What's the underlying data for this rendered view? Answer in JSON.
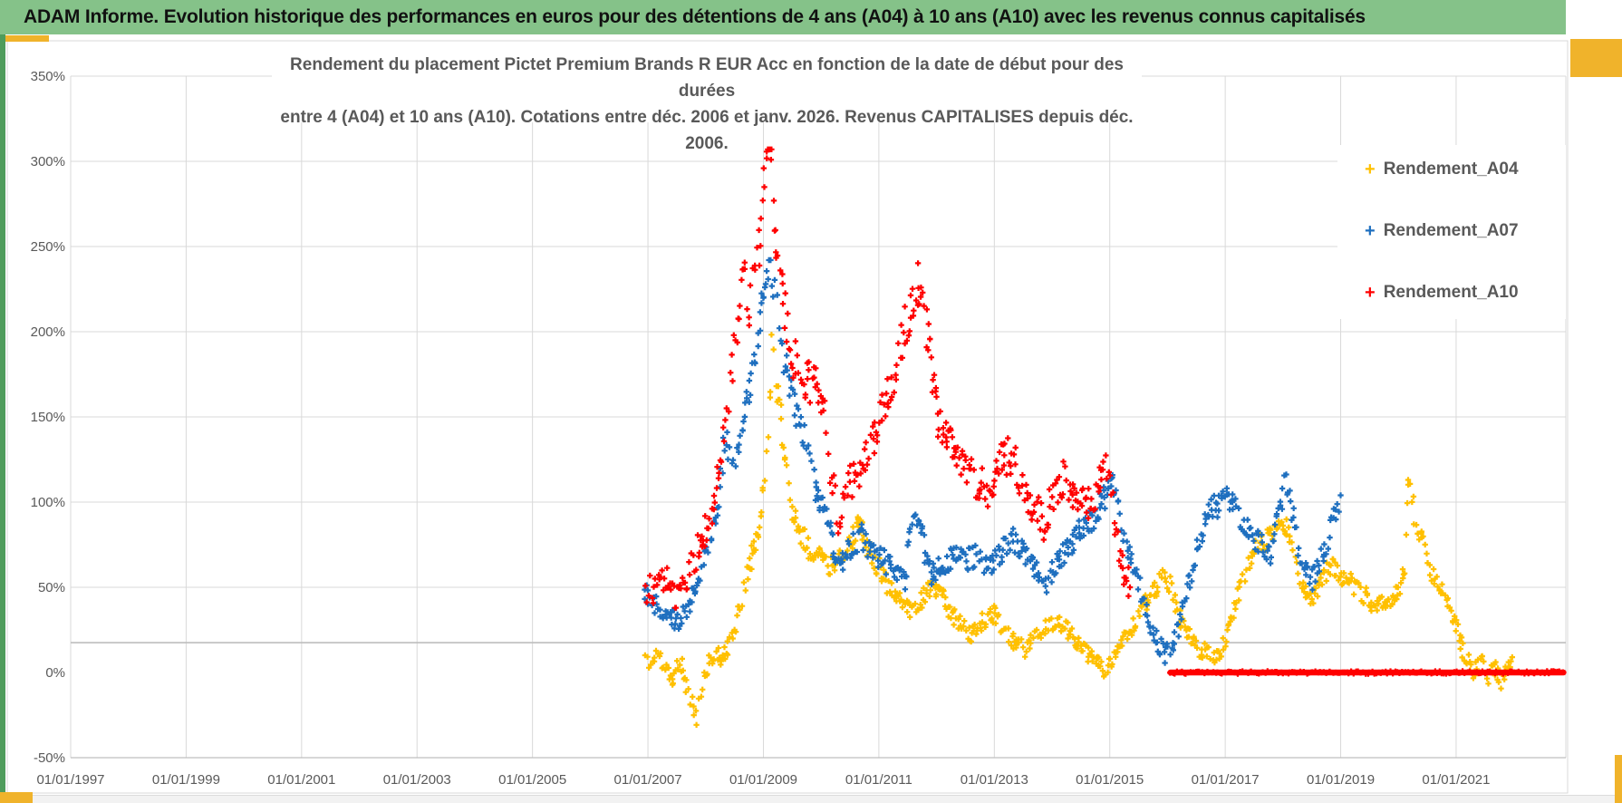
{
  "header": {
    "title": "ADAM Informe. Evolution historique des performances en euros pour des détentions de 4 ans (A04) à 10 ans (A10) avec les revenus connus capitalisés"
  },
  "colors": {
    "header_green": "#85C289",
    "accent_dark_green": "#4F9C5C",
    "accent_gold": "#F0B32B",
    "grid": "#D9D9D9",
    "grid_extra": "#BDBDBD",
    "axis_text": "#595959",
    "plot_border": "#BFBFBF",
    "series_a04": "#FFC000",
    "series_a07": "#1E6FBF",
    "series_a10": "#FF0000"
  },
  "chart_data": {
    "type": "scatter",
    "title_line1": "Rendement du placement Pictet Premium Brands R EUR Acc en fonction de la date de début pour des durées",
    "title_line2": "entre 4 (A04) et 10 ans (A10). Cotations entre déc. 2006 et janv. 2026. Revenus CAPITALISES depuis déc. 2006.",
    "marker_glyph": "+",
    "legend_position": "right-top",
    "grid": "on",
    "xlabel": "",
    "ylabel": "",
    "x_axis": {
      "min_year": 1997,
      "max_year": 2022.9,
      "ticks": [
        {
          "year": 1997,
          "label": "01/01/1997"
        },
        {
          "year": 1999,
          "label": "01/01/1999"
        },
        {
          "year": 2001,
          "label": "01/01/2001"
        },
        {
          "year": 2003,
          "label": "01/01/2003"
        },
        {
          "year": 2005,
          "label": "01/01/2005"
        },
        {
          "year": 2007,
          "label": "01/01/2007"
        },
        {
          "year": 2009,
          "label": "01/01/2009"
        },
        {
          "year": 2011,
          "label": "01/01/2011"
        },
        {
          "year": 2013,
          "label": "01/01/2013"
        },
        {
          "year": 2015,
          "label": "01/01/2015"
        },
        {
          "year": 2017,
          "label": "01/01/2017"
        },
        {
          "year": 2019,
          "label": "01/01/2019"
        },
        {
          "year": 2021,
          "label": "01/01/2021"
        }
      ]
    },
    "y_axis": {
      "min_pct": -50,
      "max_pct": 350,
      "ticks": [
        {
          "value": 350,
          "label": "350%",
          "grid": true
        },
        {
          "value": 300,
          "label": "300%",
          "grid": true
        },
        {
          "value": 250,
          "label": "250%",
          "grid": true
        },
        {
          "value": 200,
          "label": "200%",
          "grid": true
        },
        {
          "value": 150,
          "label": "150%",
          "grid": true
        },
        {
          "value": 100,
          "label": "100%",
          "grid": true
        },
        {
          "value": 50,
          "label": "50%",
          "grid": true
        },
        {
          "value": 0,
          "label": "0%",
          "grid": false
        },
        {
          "value": -50,
          "label": "-50%",
          "grid": false
        }
      ],
      "extra_gridline_pct": 17.5
    },
    "series": [
      {
        "name": "Rendement_A04",
        "color_key": "series_a04",
        "seed": 11,
        "jitter": {
          "base": 4.5,
          "div": 200,
          "min": -33,
          "max": 204
        },
        "anchors": [
          [
            2006.95,
            10
          ],
          [
            2007.05,
            5
          ],
          [
            2007.15,
            12
          ],
          [
            2007.3,
            3
          ],
          [
            2007.45,
            -5
          ],
          [
            2007.55,
            8
          ],
          [
            2007.7,
            -12
          ],
          [
            2007.85,
            -27
          ],
          [
            2007.95,
            -6
          ],
          [
            2008.05,
            6
          ],
          [
            2008.15,
            12
          ],
          [
            2008.3,
            8
          ],
          [
            2008.45,
            20
          ],
          [
            2008.6,
            40
          ],
          [
            2008.75,
            62
          ],
          [
            2008.9,
            80
          ],
          [
            2009.0,
            105
          ],
          [
            2009.08,
            140
          ],
          [
            2009.15,
            195
          ],
          [
            2009.22,
            170
          ],
          [
            2009.3,
            150
          ],
          [
            2009.4,
            118
          ],
          [
            2009.5,
            95
          ],
          [
            2009.65,
            82
          ],
          [
            2009.8,
            73
          ],
          [
            2010.0,
            70
          ],
          [
            2010.15,
            62
          ],
          [
            2010.3,
            68
          ],
          [
            2010.5,
            76
          ],
          [
            2010.65,
            88
          ],
          [
            2010.8,
            74
          ],
          [
            2011.0,
            62
          ],
          [
            2011.2,
            48
          ],
          [
            2011.4,
            42
          ],
          [
            2011.6,
            36
          ],
          [
            2011.8,
            46
          ],
          [
            2012.0,
            50
          ],
          [
            2012.2,
            38
          ],
          [
            2012.4,
            28
          ],
          [
            2012.6,
            22
          ],
          [
            2012.8,
            30
          ],
          [
            2013.0,
            35
          ],
          [
            2013.2,
            24
          ],
          [
            2013.4,
            16
          ],
          [
            2013.55,
            13
          ],
          [
            2013.7,
            20
          ],
          [
            2013.9,
            26
          ],
          [
            2014.1,
            30
          ],
          [
            2014.3,
            24
          ],
          [
            2014.5,
            15
          ],
          [
            2014.7,
            8
          ],
          [
            2014.9,
            2
          ],
          [
            2015.05,
            8
          ],
          [
            2015.2,
            18
          ],
          [
            2015.4,
            28
          ],
          [
            2015.6,
            40
          ],
          [
            2015.8,
            50
          ],
          [
            2015.98,
            58
          ],
          [
            2016.15,
            38
          ],
          [
            2016.35,
            22
          ],
          [
            2016.55,
            14
          ],
          [
            2016.75,
            10
          ],
          [
            2016.88,
            8
          ],
          [
            2017.05,
            25
          ],
          [
            2017.25,
            48
          ],
          [
            2017.45,
            68
          ],
          [
            2017.65,
            76
          ],
          [
            2017.85,
            82
          ],
          [
            2018.0,
            90
          ],
          [
            2018.15,
            74
          ],
          [
            2018.3,
            55
          ],
          [
            2018.45,
            43
          ],
          [
            2018.6,
            50
          ],
          [
            2018.8,
            63
          ],
          [
            2019.0,
            58
          ],
          [
            2019.2,
            52
          ],
          [
            2019.4,
            46
          ],
          [
            2019.6,
            38
          ],
          [
            2019.8,
            42
          ],
          [
            2020.0,
            46
          ],
          [
            2020.1,
            62
          ],
          [
            2020.18,
            112
          ],
          [
            2020.28,
            92
          ],
          [
            2020.45,
            72
          ],
          [
            2020.6,
            56
          ],
          [
            2020.8,
            44
          ],
          [
            2021.0,
            28
          ],
          [
            2021.15,
            10
          ],
          [
            2021.3,
            0
          ],
          [
            2021.45,
            8
          ],
          [
            2021.55,
            -2
          ],
          [
            2021.65,
            5
          ],
          [
            2021.78,
            -8
          ],
          [
            2021.88,
            3
          ],
          [
            2021.97,
            9
          ]
        ]
      },
      {
        "name": "Rendement_A07",
        "color_key": "series_a07",
        "seed": 22,
        "jitter": {
          "base": 5.5,
          "div": 240,
          "min": 2,
          "max": 242
        },
        "anchors": [
          [
            2006.95,
            47
          ],
          [
            2007.1,
            42
          ],
          [
            2007.3,
            37
          ],
          [
            2007.55,
            29
          ],
          [
            2007.7,
            40
          ],
          [
            2007.9,
            55
          ],
          [
            2008.05,
            76
          ],
          [
            2008.2,
            96
          ],
          [
            2008.35,
            140
          ],
          [
            2008.45,
            118
          ],
          [
            2008.6,
            135
          ],
          [
            2008.75,
            165
          ],
          [
            2008.9,
            196
          ],
          [
            2009.0,
            226
          ],
          [
            2009.1,
            240
          ],
          [
            2009.2,
            224
          ],
          [
            2009.3,
            196
          ],
          [
            2009.45,
            166
          ],
          [
            2009.6,
            150
          ],
          [
            2009.75,
            134
          ],
          [
            2009.9,
            106
          ],
          [
            2010.1,
            90
          ],
          [
            2010.3,
            62
          ],
          [
            2010.5,
            72
          ],
          [
            2010.7,
            80
          ],
          [
            2010.9,
            70
          ],
          [
            2011.1,
            65
          ],
          [
            2011.3,
            60
          ],
          [
            2011.45,
            55
          ],
          [
            2011.6,
            92
          ],
          [
            2011.75,
            80
          ],
          [
            2011.9,
            58
          ],
          [
            2012.1,
            62
          ],
          [
            2012.3,
            68
          ],
          [
            2012.5,
            65
          ],
          [
            2012.7,
            70
          ],
          [
            2012.9,
            60
          ],
          [
            2013.1,
            70
          ],
          [
            2013.3,
            80
          ],
          [
            2013.5,
            70
          ],
          [
            2013.7,
            60
          ],
          [
            2013.85,
            50
          ],
          [
            2014.0,
            58
          ],
          [
            2014.2,
            70
          ],
          [
            2014.4,
            80
          ],
          [
            2014.6,
            86
          ],
          [
            2014.8,
            96
          ],
          [
            2014.95,
            106
          ],
          [
            2015.05,
            112
          ],
          [
            2015.2,
            86
          ],
          [
            2015.4,
            62
          ],
          [
            2015.6,
            40
          ],
          [
            2015.8,
            20
          ],
          [
            2015.95,
            10
          ],
          [
            2016.1,
            16
          ],
          [
            2016.3,
            42
          ],
          [
            2016.5,
            72
          ],
          [
            2016.7,
            92
          ],
          [
            2016.9,
            100
          ],
          [
            2017.05,
            103
          ],
          [
            2017.2,
            95
          ],
          [
            2017.35,
            88
          ],
          [
            2017.5,
            80
          ],
          [
            2017.65,
            75
          ],
          [
            2017.8,
            70
          ],
          [
            2017.95,
            96
          ],
          [
            2018.05,
            115
          ],
          [
            2018.15,
            94
          ],
          [
            2018.3,
            70
          ],
          [
            2018.45,
            52
          ],
          [
            2018.6,
            60
          ],
          [
            2018.75,
            76
          ],
          [
            2018.9,
            92
          ],
          [
            2019.0,
            104
          ]
        ]
      },
      {
        "name": "Rendement_A10",
        "color_key": "series_a10",
        "seed": 33,
        "jitter": {
          "base": 7,
          "div": 200,
          "min": 38,
          "max": 307
        },
        "anchors": [
          [
            2006.95,
            50
          ],
          [
            2007.1,
            48
          ],
          [
            2007.3,
            56
          ],
          [
            2007.5,
            42
          ],
          [
            2007.7,
            60
          ],
          [
            2007.9,
            73
          ],
          [
            2008.1,
            96
          ],
          [
            2008.25,
            128
          ],
          [
            2008.4,
            162
          ],
          [
            2008.55,
            205
          ],
          [
            2008.65,
            242
          ],
          [
            2008.75,
            216
          ],
          [
            2008.85,
            236
          ],
          [
            2008.95,
            262
          ],
          [
            2009.05,
            292
          ],
          [
            2009.1,
            305
          ],
          [
            2009.17,
            278
          ],
          [
            2009.25,
            242
          ],
          [
            2009.35,
            215
          ],
          [
            2009.5,
            186
          ],
          [
            2009.7,
            172
          ],
          [
            2009.9,
            166
          ],
          [
            2010.05,
            150
          ],
          [
            2010.15,
            122
          ],
          [
            2010.3,
            88
          ],
          [
            2010.45,
            108
          ],
          [
            2010.6,
            115
          ],
          [
            2010.8,
            126
          ],
          [
            2011.0,
            146
          ],
          [
            2011.2,
            166
          ],
          [
            2011.4,
            196
          ],
          [
            2011.55,
            216
          ],
          [
            2011.7,
            230
          ],
          [
            2011.82,
            204
          ],
          [
            2011.95,
            162
          ],
          [
            2012.1,
            141
          ],
          [
            2012.3,
            131
          ],
          [
            2012.5,
            118
          ],
          [
            2012.7,
            112
          ],
          [
            2012.9,
            108
          ],
          [
            2013.1,
            124
          ],
          [
            2013.3,
            128
          ],
          [
            2013.5,
            110
          ],
          [
            2013.7,
            96
          ],
          [
            2013.85,
            88
          ],
          [
            2014.0,
            100
          ],
          [
            2014.2,
            114
          ],
          [
            2014.4,
            104
          ],
          [
            2014.6,
            98
          ],
          [
            2014.8,
            110
          ],
          [
            2014.95,
            120
          ],
          [
            2015.05,
            98
          ],
          [
            2015.15,
            74
          ],
          [
            2015.25,
            60
          ],
          [
            2015.35,
            50
          ]
        ],
        "flat_zero_segment": {
          "from_year": 2016.05,
          "to_year": 2022.86,
          "value_pct": 0
        }
      }
    ]
  }
}
